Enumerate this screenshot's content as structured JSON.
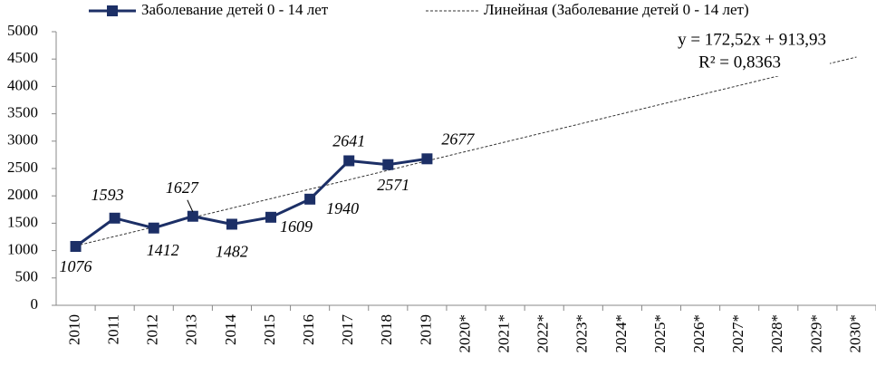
{
  "chart_data": {
    "type": "line",
    "categories": [
      "2010",
      "2011",
      "2012",
      "2013",
      "2014",
      "2015",
      "2016",
      "2017",
      "2018",
      "2019",
      "2020*",
      "2021*",
      "2022*",
      "2023*",
      "2024*",
      "2025*",
      "2026*",
      "2027*",
      "2028*",
      "2029*",
      "2030*"
    ],
    "series": [
      {
        "name": "Заболевание детей 0 - 14 лет",
        "color": "#1c2f66",
        "values": [
          1076,
          1593,
          1412,
          1627,
          1482,
          1609,
          1940,
          2641,
          2571,
          2677,
          null,
          null,
          null,
          null,
          null,
          null,
          null,
          null,
          null,
          null,
          null
        ]
      },
      {
        "name": "Линейная (Заболевание детей 0 - 14 лет)",
        "color": "#333333",
        "values": [
          1086,
          1259,
          1431,
          1604,
          1776,
          1949,
          2122,
          2294,
          2467,
          2639,
          2812,
          2984,
          3157,
          3329,
          3502,
          3674,
          3847,
          4019,
          4192,
          4364,
          4537
        ]
      }
    ],
    "annotations": [
      "y = 172,52x + 913,93",
      "R² = 0,8363"
    ],
    "ylim": [
      0,
      5000
    ],
    "yticks": [
      0,
      500,
      1000,
      1500,
      2000,
      2500,
      3000,
      3500,
      4000,
      4500,
      5000
    ],
    "grid": false
  }
}
